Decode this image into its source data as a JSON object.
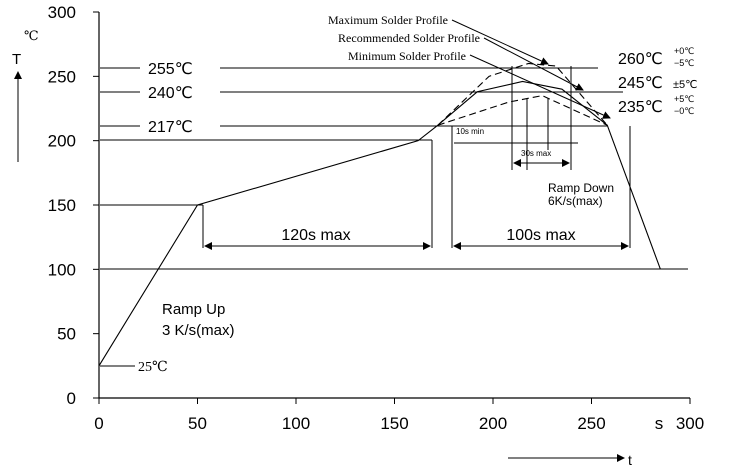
{
  "chart_data": {
    "type": "line",
    "title": "",
    "xlabel": "s",
    "ylabel": "T",
    "x_unit_label": "s",
    "y_unit_label": "℃",
    "x_arrow_label": "t",
    "xlim": [
      0,
      300
    ],
    "ylim": [
      0,
      300
    ],
    "x_ticks": [
      0,
      50,
      100,
      150,
      200,
      250,
      300
    ],
    "y_ticks": [
      0,
      50,
      100,
      150,
      200,
      250,
      300
    ],
    "grid": false,
    "series": [
      {
        "name": "Maximum Solder Profile",
        "style": "dashed",
        "points": [
          [
            172,
            212
          ],
          [
            198,
            250
          ],
          [
            218,
            260
          ],
          [
            232,
            258
          ],
          [
            258,
            212
          ]
        ]
      },
      {
        "name": "Recommended Solder Profile",
        "style": "solid",
        "points": [
          [
            0,
            25
          ],
          [
            50,
            150
          ],
          [
            162,
            200
          ],
          [
            172,
            212
          ],
          [
            192,
            238
          ],
          [
            215,
            246
          ],
          [
            235,
            240
          ],
          [
            258,
            212
          ],
          [
            285,
            100
          ]
        ]
      },
      {
        "name": "Minimum Solder Profile",
        "style": "dashed",
        "points": [
          [
            172,
            212
          ],
          [
            208,
            230
          ],
          [
            225,
            235
          ],
          [
            258,
            212
          ]
        ]
      }
    ],
    "reference_lines": [
      {
        "label": "255℃",
        "value": 255
      },
      {
        "label": "240℃",
        "value": 240
      },
      {
        "label": "217℃",
        "value": 217
      },
      {
        "label": "200",
        "value": 200
      },
      {
        "label": "150",
        "value": 150
      },
      {
        "label": "100",
        "value": 100
      }
    ],
    "annotations": {
      "max_profile": "Maximum Solder Profile",
      "rec_profile": "Recommended Solder Profile",
      "min_profile": "Minimum Solder Profile",
      "peak_260": "260℃",
      "peak_260_tol_top": "+0℃",
      "peak_260_tol_bottom": "−5℃",
      "peak_245": "245℃",
      "peak_245_tol": "±5℃",
      "peak_235": "235℃",
      "peak_235_tol_top": "+5℃",
      "peak_235_tol_bottom": "−0℃",
      "ten_s_min": "10s min",
      "thirty_s_max": "30s max",
      "ramp_down_1": "Ramp Down",
      "ramp_down_2": "6K/s(max)",
      "preheat": "120s max",
      "reflow": "100s max",
      "ramp_up_1": "Ramp Up",
      "ramp_up_2": "3 K/s(max)",
      "start_temp": "25℃",
      "label_255": "255℃",
      "label_240": "240℃",
      "label_217": "217℃"
    }
  }
}
